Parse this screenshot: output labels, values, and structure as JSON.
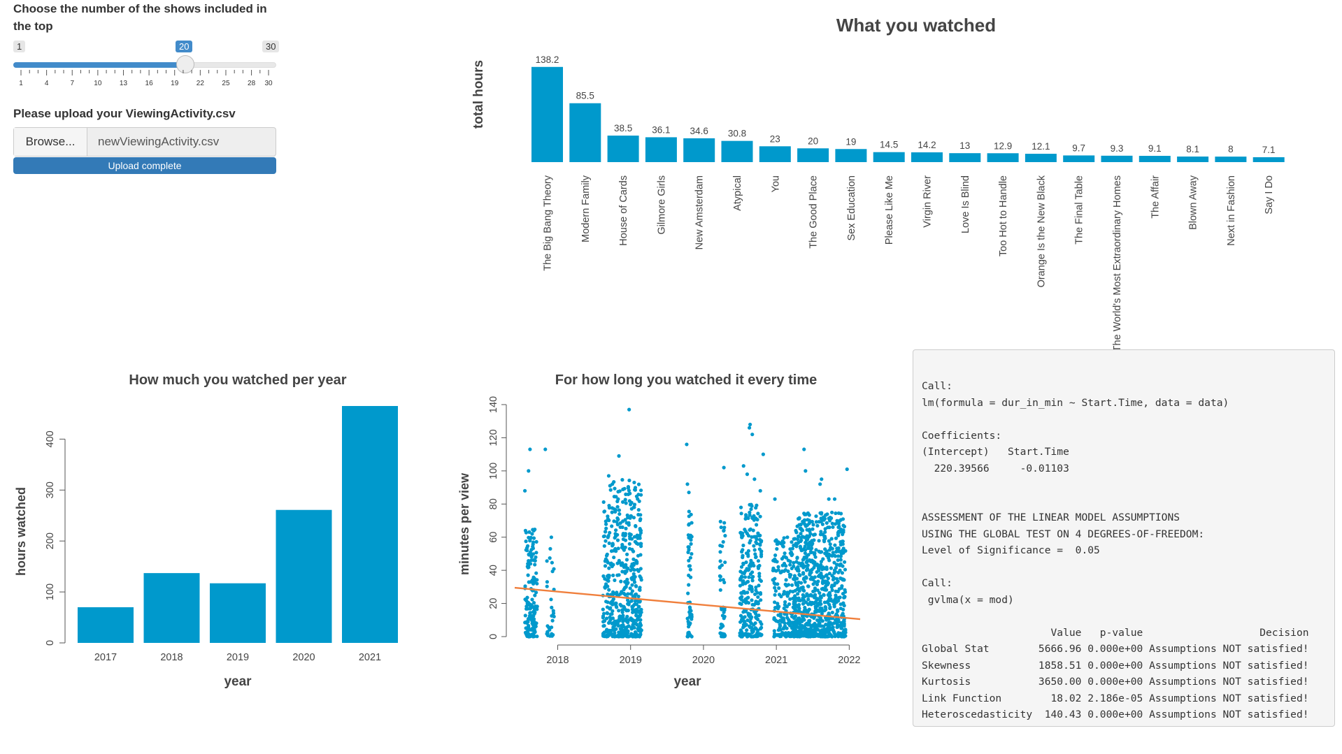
{
  "slider": {
    "label": "Choose the number of the shows included in the top",
    "min": "1",
    "max": "30",
    "value": "20",
    "value_num": 20,
    "min_num": 1,
    "max_num": 30,
    "ticks": [
      "1",
      "4",
      "7",
      "10",
      "13",
      "16",
      "19",
      "22",
      "25",
      "28",
      "30"
    ]
  },
  "upload": {
    "label": "Please upload your ViewingActivity.csv",
    "browse_label": "Browse...",
    "file_name": "newViewingActivity.csv",
    "progress_label": "Upload complete",
    "progress": 1.0
  },
  "colors": {
    "bar": "#0099cc",
    "trend": "#f07f3c",
    "accent": "#428bca"
  },
  "chart_data": [
    {
      "type": "bar",
      "title": "What you watched",
      "ylabel": "total hours",
      "xlabel": "",
      "categories": [
        "The Big Bang Theory",
        "Modern Family",
        "House of Cards",
        "Gilmore Girls",
        "New Amsterdam",
        "Atypical",
        "You",
        "The Good Place",
        "Sex Education",
        "Please Like Me",
        "Virgin River",
        "Love Is Blind",
        "Too Hot to Handle",
        "Orange Is the New Black",
        "The Final Table",
        "The World's Most Extraordinary Homes",
        "The Affair",
        "Blown Away",
        "Next in Fashion",
        "Say I Do"
      ],
      "values": [
        138.2,
        85.5,
        38.5,
        36.1,
        34.6,
        30.8,
        23,
        20,
        19,
        14.5,
        14.2,
        13,
        12.9,
        12.1,
        9.7,
        9.3,
        9.1,
        8.1,
        8,
        7.1
      ],
      "value_labels": [
        "138.2",
        "85.5",
        "38.5",
        "36.1",
        "34.6",
        "30.8",
        "23",
        "20",
        "19",
        "14.5",
        "14.2",
        "13",
        "12.9",
        "12.1",
        "9.7",
        "9.3",
        "9.1",
        "8.1",
        "8",
        "7.1"
      ],
      "ylim": [
        0,
        140
      ]
    },
    {
      "type": "bar",
      "title": "How much you watched per year",
      "xlabel": "year",
      "ylabel": "hours watched",
      "categories": [
        "2017",
        "2018",
        "2019",
        "2020",
        "2021"
      ],
      "values": [
        70,
        137,
        117,
        261,
        465
      ],
      "yticks": [
        "0",
        "100",
        "200",
        "300",
        "400"
      ],
      "ylim": [
        0,
        465
      ],
      "grid": false
    },
    {
      "type": "scatter",
      "title": "For how long you watched it every time",
      "xlabel": "year",
      "ylabel": "minutes per view",
      "xticks": [
        "2018",
        "2019",
        "2020",
        "2021",
        "2022"
      ],
      "yticks": [
        "0",
        "20",
        "40",
        "60",
        "80",
        "100",
        "120",
        "140"
      ],
      "xlim": [
        2017.41,
        2022.15
      ],
      "ylim": [
        0,
        140
      ],
      "trend": {
        "intercept": 220.39566,
        "slope": -0.01103,
        "y_start": 29.5,
        "y_end": 10.5
      },
      "clusters": [
        {
          "x0": 2017.55,
          "x1": 2017.72,
          "n": 160,
          "max": 65
        },
        {
          "x0": 2017.85,
          "x1": 2017.95,
          "n": 30,
          "max": 62
        },
        {
          "x0": 2018.62,
          "x1": 2018.92,
          "n": 260,
          "max": 95
        },
        {
          "x0": 2018.92,
          "x1": 2019.15,
          "n": 260,
          "max": 95
        },
        {
          "x0": 2019.78,
          "x1": 2019.84,
          "n": 60,
          "max": 88
        },
        {
          "x0": 2020.22,
          "x1": 2020.3,
          "n": 50,
          "max": 70
        },
        {
          "x0": 2020.5,
          "x1": 2020.8,
          "n": 260,
          "max": 80
        },
        {
          "x0": 2020.95,
          "x1": 2021.25,
          "n": 200,
          "max": 60
        },
        {
          "x0": 2021.25,
          "x1": 2021.95,
          "n": 800,
          "max": 75
        }
      ],
      "outliers": [
        [
          2017.62,
          113
        ],
        [
          2017.83,
          113
        ],
        [
          2017.6,
          100
        ],
        [
          2017.55,
          88
        ],
        [
          2018.7,
          97
        ],
        [
          2018.84,
          109
        ],
        [
          2018.98,
          137
        ],
        [
          2018.75,
          92
        ],
        [
          2019.05,
          93
        ],
        [
          2019.77,
          116
        ],
        [
          2019.78,
          92
        ],
        [
          2019.8,
          87
        ],
        [
          2020.28,
          102
        ],
        [
          2020.55,
          103
        ],
        [
          2020.6,
          98
        ],
        [
          2020.63,
          126
        ],
        [
          2020.64,
          128
        ],
        [
          2020.67,
          122
        ],
        [
          2020.7,
          95
        ],
        [
          2020.78,
          88
        ],
        [
          2020.82,
          110
        ],
        [
          2020.98,
          83
        ],
        [
          2021.38,
          113
        ],
        [
          2021.4,
          100
        ],
        [
          2021.6,
          92
        ],
        [
          2021.62,
          95
        ],
        [
          2021.72,
          83
        ],
        [
          2021.8,
          83
        ],
        [
          2021.97,
          101
        ]
      ]
    }
  ],
  "lm_output": {
    "lines": [
      "Call:",
      "lm(formula = dur_in_min ~ Start.Time, data = data)",
      "",
      "Coefficients:",
      "(Intercept)   Start.Time  ",
      "  220.39566     -0.01103  ",
      "",
      "",
      "ASSESSMENT OF THE LINEAR MODEL ASSUMPTIONS",
      "USING THE GLOBAL TEST ON 4 DEGREES-OF-FREEDOM:",
      "Level of Significance =  0.05 ",
      "",
      "Call:",
      " gvlma(x = mod) ",
      "",
      "                     Value   p-value                   Decision",
      "Global Stat        5666.96 0.000e+00 Assumptions NOT satisfied!",
      "Skewness           1858.51 0.000e+00 Assumptions NOT satisfied!",
      "Kurtosis           3650.00 0.000e+00 Assumptions NOT satisfied!",
      "Link Function        18.02 2.186e-05 Assumptions NOT satisfied!",
      "Heteroscedasticity  140.43 0.000e+00 Assumptions NOT satisfied!"
    ]
  }
}
